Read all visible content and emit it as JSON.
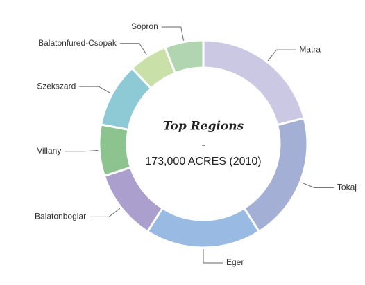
{
  "chart_data": {
    "type": "pie",
    "donut": true,
    "title": "Top Regions",
    "annotations": [
      "-",
      "173,000 ACRES (2010)"
    ],
    "categories": [
      "Matra",
      "Tokaj",
      "Eger",
      "Balatonboglar",
      "Villany",
      "Szekszard",
      "Balatonfured-Csopak",
      "Sopron"
    ],
    "values": [
      21,
      20,
      18,
      11,
      8,
      10,
      6,
      6
    ],
    "colors": [
      "#cbc8e3",
      "#a4afd6",
      "#99bbe3",
      "#ab9fcd",
      "#8dc38e",
      "#8ecad6",
      "#c9e0a8",
      "#b0d5b0"
    ]
  }
}
